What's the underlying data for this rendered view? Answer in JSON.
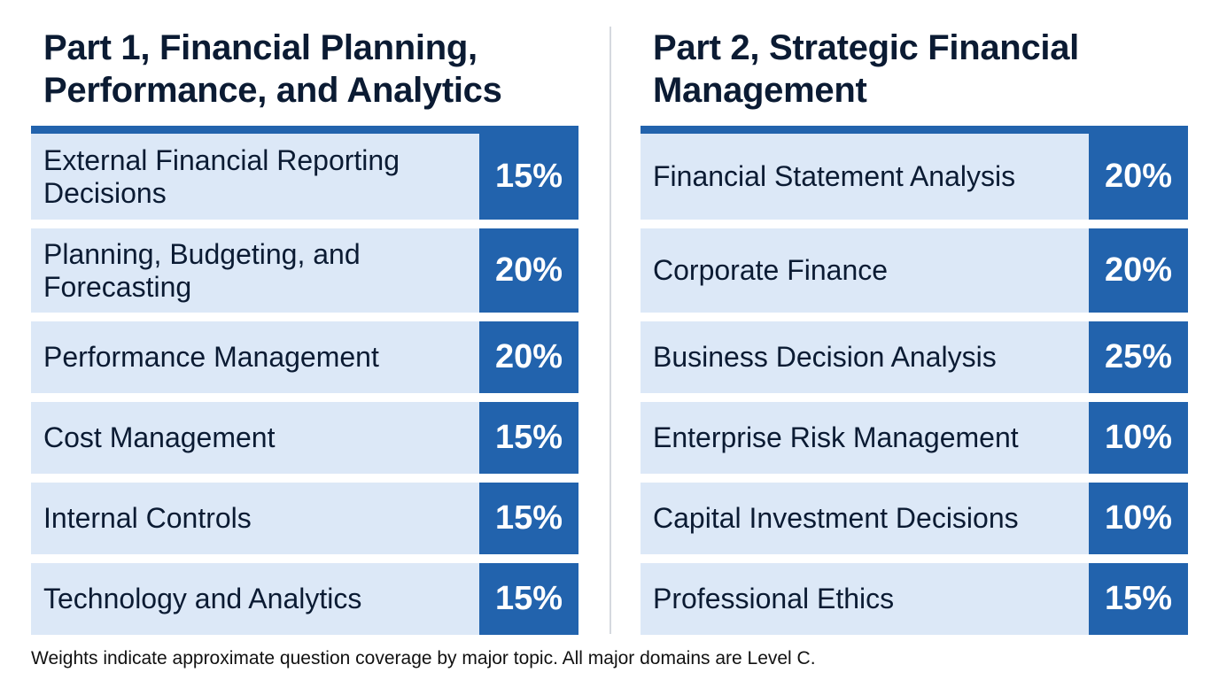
{
  "part1": {
    "title_line1": "Part 1, Financial Planning,",
    "title_line2": "Performance, and Analytics",
    "rows": [
      {
        "label_line1": "External Financial Reporting",
        "label_line2": "Decisions",
        "weight": "15%"
      },
      {
        "label_line1": "Planning, Budgeting, and",
        "label_line2": "Forecasting",
        "weight": "20%"
      },
      {
        "label_line1": "Performance Management",
        "weight": "20%"
      },
      {
        "label_line1": "Cost Management",
        "weight": "15%"
      },
      {
        "label_line1": "Internal Controls",
        "weight": "15%"
      },
      {
        "label_line1": "Technology and Analytics",
        "weight": "15%"
      }
    ]
  },
  "part2": {
    "title_line1": "Part 2, Strategic Financial",
    "title_line2": "Management",
    "rows": [
      {
        "label_line1": "Financial Statement Analysis",
        "weight": "20%"
      },
      {
        "label_line1": "Corporate Finance",
        "weight": "20%"
      },
      {
        "label_line1": "Business Decision Analysis",
        "weight": "25%"
      },
      {
        "label_line1": "Enterprise Risk Management",
        "weight": "10%"
      },
      {
        "label_line1": "Capital Investment Decisions",
        "weight": "10%"
      },
      {
        "label_line1": "Professional Ethics",
        "weight": "15%"
      }
    ]
  },
  "footnote": "Weights indicate approximate question coverage by major topic. All major domains are Level C.",
  "colors": {
    "accent_blue": "#2263ad",
    "row_fill": "#dce8f7",
    "title_text": "#0b1b33"
  }
}
